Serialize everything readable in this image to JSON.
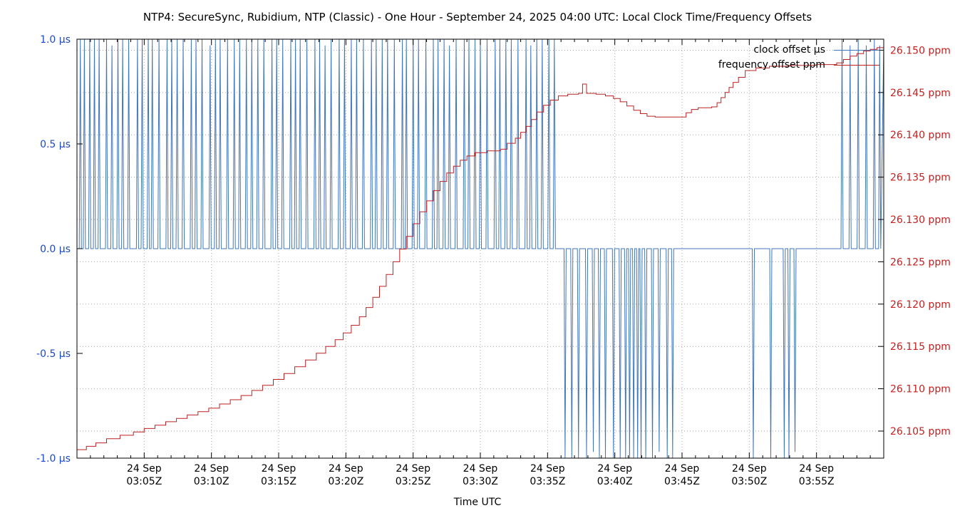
{
  "chart_data": {
    "type": "line",
    "title": "NTP4: SecureSync, Rubidium, NTP (Classic) - One Hour - September 24, 2025 04:00 UTC: Local Clock Time/Frequency Offsets",
    "xlabel": "Time UTC",
    "grid": {
      "color": "#a6a6a6",
      "style": "dotted"
    },
    "x_range": [
      0,
      60
    ],
    "x_ticks": [
      {
        "minute": 5,
        "line1": "24 Sep",
        "line2": "03:05Z"
      },
      {
        "minute": 10,
        "line1": "24 Sep",
        "line2": "03:10Z"
      },
      {
        "minute": 15,
        "line1": "24 Sep",
        "line2": "03:15Z"
      },
      {
        "minute": 20,
        "line1": "24 Sep",
        "line2": "03:20Z"
      },
      {
        "minute": 25,
        "line1": "24 Sep",
        "line2": "03:25Z"
      },
      {
        "minute": 30,
        "line1": "24 Sep",
        "line2": "03:30Z"
      },
      {
        "minute": 35,
        "line1": "24 Sep",
        "line2": "03:35Z"
      },
      {
        "minute": 40,
        "line1": "24 Sep",
        "line2": "03:40Z"
      },
      {
        "minute": 45,
        "line1": "24 Sep",
        "line2": "03:45Z"
      },
      {
        "minute": 50,
        "line1": "24 Sep",
        "line2": "03:50Z"
      },
      {
        "minute": 55,
        "line1": "24 Sep",
        "line2": "03:55Z"
      }
    ],
    "left_axis": {
      "color": "#1d49c7",
      "range": [
        -1,
        1
      ],
      "ticks": [
        {
          "value": 1.0,
          "label": "1.0 µs"
        },
        {
          "value": 0.5,
          "label": "0.5 µs"
        },
        {
          "value": 0.0,
          "label": "0.0 µs"
        },
        {
          "value": -0.5,
          "label": "-0.5 µs"
        },
        {
          "value": -1.0,
          "label": "-1.0 µs"
        }
      ]
    },
    "right_axis": {
      "color": "#c42020",
      "range": [
        26.1018,
        26.1513
      ],
      "ticks": [
        {
          "value": 26.15,
          "label": "26.150 ppm"
        },
        {
          "value": 26.145,
          "label": "26.145 ppm"
        },
        {
          "value": 26.14,
          "label": "26.140 ppm"
        },
        {
          "value": 26.135,
          "label": "26.135 ppm"
        },
        {
          "value": 26.13,
          "label": "26.130 ppm"
        },
        {
          "value": 26.125,
          "label": "26.125 ppm"
        },
        {
          "value": 26.12,
          "label": "26.120 ppm"
        },
        {
          "value": 26.115,
          "label": "26.115 ppm"
        },
        {
          "value": 26.11,
          "label": "26.110 ppm"
        },
        {
          "value": 26.105,
          "label": "26.105 ppm"
        }
      ]
    },
    "series": [
      {
        "name": "clock offset µs",
        "color": "#3f76b8",
        "axis": "left",
        "type": "spikes",
        "baseline": 0,
        "spike_halfwidth_minutes": 0.08,
        "end_value": 0.97,
        "spikes": [
          [
            0.25,
            1.05
          ],
          [
            0.55,
            1.05
          ],
          [
            0.95,
            1.05
          ],
          [
            1.3,
            1.05
          ],
          [
            1.65,
            1.05
          ],
          [
            2.2,
            1.05
          ],
          [
            2.6,
            0.97
          ],
          [
            3.05,
            1.05
          ],
          [
            3.4,
            1.05
          ],
          [
            3.85,
            1.05
          ],
          [
            4.5,
            1.05
          ],
          [
            4.85,
            1.05
          ],
          [
            5.3,
            1.05
          ],
          [
            5.6,
            1.05
          ],
          [
            6.1,
            1.05
          ],
          [
            6.7,
            1.05
          ],
          [
            7.05,
            1.05
          ],
          [
            7.45,
            1.05
          ],
          [
            7.9,
            1.05
          ],
          [
            8.5,
            1.05
          ],
          [
            8.85,
            1.05
          ],
          [
            9.3,
            1.05
          ],
          [
            9.9,
            0.97
          ],
          [
            10.3,
            1.05
          ],
          [
            10.65,
            1.05
          ],
          [
            11.2,
            1.05
          ],
          [
            11.7,
            1.05
          ],
          [
            12.1,
            1.05
          ],
          [
            12.6,
            1.05
          ],
          [
            13.0,
            1.05
          ],
          [
            13.45,
            1.05
          ],
          [
            13.9,
            1.05
          ],
          [
            14.5,
            1.05
          ],
          [
            14.85,
            1.05
          ],
          [
            15.3,
            1.05
          ],
          [
            15.9,
            1.05
          ],
          [
            16.25,
            1.05
          ],
          [
            16.6,
            1.05
          ],
          [
            17.1,
            1.05
          ],
          [
            17.7,
            1.05
          ],
          [
            18.05,
            1.05
          ],
          [
            18.45,
            0.97
          ],
          [
            18.9,
            1.05
          ],
          [
            19.5,
            1.05
          ],
          [
            19.9,
            1.05
          ],
          [
            20.4,
            1.05
          ],
          [
            20.8,
            1.05
          ],
          [
            21.3,
            1.05
          ],
          [
            21.9,
            1.05
          ],
          [
            22.25,
            1.05
          ],
          [
            22.7,
            1.05
          ],
          [
            23.1,
            1.05
          ],
          [
            23.6,
            1.05
          ],
          [
            24.2,
            1.05
          ],
          [
            24.5,
            1.05
          ],
          [
            25.0,
            1.05
          ],
          [
            25.4,
            1.05
          ],
          [
            25.95,
            1.05
          ],
          [
            26.5,
            1.05
          ],
          [
            26.85,
            1.05
          ],
          [
            27.3,
            1.05
          ],
          [
            27.7,
            0.97
          ],
          [
            28.2,
            1.05
          ],
          [
            28.8,
            1.05
          ],
          [
            29.15,
            1.05
          ],
          [
            29.6,
            1.05
          ],
          [
            30.0,
            1.05
          ],
          [
            30.5,
            1.05
          ],
          [
            31.1,
            1.05
          ],
          [
            31.45,
            1.05
          ],
          [
            31.9,
            1.05
          ],
          [
            32.3,
            1.05
          ],
          [
            32.8,
            1.05
          ],
          [
            33.4,
            1.05
          ],
          [
            33.75,
            0.97
          ],
          [
            34.2,
            1.05
          ],
          [
            34.6,
            1.05
          ],
          [
            35.1,
            1.05
          ],
          [
            35.5,
            1.05
          ],
          [
            36.3,
            -1.05
          ],
          [
            36.8,
            -1.05
          ],
          [
            37.3,
            -1.05
          ],
          [
            37.9,
            -1.05
          ],
          [
            38.4,
            -0.97
          ],
          [
            38.85,
            -1.05
          ],
          [
            39.3,
            -1.05
          ],
          [
            39.9,
            -1.05
          ],
          [
            40.4,
            -1.05
          ],
          [
            40.8,
            -1.05
          ],
          [
            41.1,
            -1.05
          ],
          [
            41.4,
            -1.05
          ],
          [
            41.7,
            -1.05
          ],
          [
            41.95,
            -1.05
          ],
          [
            42.3,
            -1.05
          ],
          [
            42.8,
            -1.05
          ],
          [
            43.3,
            -0.97
          ],
          [
            43.9,
            -1.05
          ],
          [
            44.3,
            -1.05
          ],
          [
            50.3,
            -1.05
          ],
          [
            51.6,
            -1.05
          ],
          [
            52.6,
            -1.05
          ],
          [
            52.95,
            -1.05
          ],
          [
            53.4,
            -0.97
          ],
          [
            56.9,
            1.05
          ],
          [
            57.5,
            0.97
          ],
          [
            58.1,
            1.05
          ],
          [
            58.7,
            0.97
          ],
          [
            59.3,
            1.05
          ],
          [
            59.7,
            0.97
          ]
        ]
      },
      {
        "name": "frequency offset ppm",
        "color": "#bb2222",
        "axis": "right",
        "type": "step",
        "points": [
          [
            0,
            26.1028
          ],
          [
            0.7,
            26.1032
          ],
          [
            1.4,
            26.1036
          ],
          [
            2.2,
            26.1041
          ],
          [
            3.2,
            26.1045
          ],
          [
            4.2,
            26.1049
          ],
          [
            5.0,
            26.1053
          ],
          [
            5.8,
            26.1057
          ],
          [
            6.6,
            26.1061
          ],
          [
            7.4,
            26.1065
          ],
          [
            8.2,
            26.1069
          ],
          [
            9.0,
            26.1073
          ],
          [
            9.8,
            26.1077
          ],
          [
            10.6,
            26.1082
          ],
          [
            11.4,
            26.1087
          ],
          [
            12.2,
            26.1092
          ],
          [
            13.0,
            26.1098
          ],
          [
            13.8,
            26.1104
          ],
          [
            14.6,
            26.1111
          ],
          [
            15.4,
            26.1118
          ],
          [
            16.2,
            26.1126
          ],
          [
            17.0,
            26.1134
          ],
          [
            17.8,
            26.1142
          ],
          [
            18.5,
            26.115
          ],
          [
            19.2,
            26.1158
          ],
          [
            19.8,
            26.1166
          ],
          [
            20.4,
            26.1175
          ],
          [
            21.0,
            26.1185
          ],
          [
            21.5,
            26.1196
          ],
          [
            22.0,
            26.1208
          ],
          [
            22.5,
            26.1221
          ],
          [
            23.0,
            26.1235
          ],
          [
            23.5,
            26.125
          ],
          [
            24.0,
            26.1265
          ],
          [
            24.5,
            26.128
          ],
          [
            25.0,
            26.1295
          ],
          [
            25.5,
            26.1309
          ],
          [
            26.0,
            26.1322
          ],
          [
            26.5,
            26.1334
          ],
          [
            27.0,
            26.1345
          ],
          [
            27.5,
            26.1355
          ],
          [
            28.0,
            26.1363
          ],
          [
            28.5,
            26.137
          ],
          [
            29.0,
            26.1375
          ],
          [
            29.6,
            26.1379
          ],
          [
            30.5,
            26.1381
          ],
          [
            31.5,
            26.1383
          ],
          [
            32.0,
            26.139
          ],
          [
            32.6,
            26.1396
          ],
          [
            33.0,
            26.1403
          ],
          [
            33.4,
            26.141
          ],
          [
            33.8,
            26.1418
          ],
          [
            34.2,
            26.1427
          ],
          [
            34.7,
            26.1435
          ],
          [
            35.2,
            26.1441
          ],
          [
            35.8,
            26.1446
          ],
          [
            36.5,
            26.1448
          ],
          [
            37.3,
            26.1449
          ],
          [
            37.6,
            26.146
          ],
          [
            37.9,
            26.1449
          ],
          [
            38.6,
            26.1448
          ],
          [
            39.3,
            26.1446
          ],
          [
            39.9,
            26.1443
          ],
          [
            40.4,
            26.1439
          ],
          [
            40.9,
            26.1434
          ],
          [
            41.4,
            26.1429
          ],
          [
            41.9,
            26.1425
          ],
          [
            42.4,
            26.1422
          ],
          [
            43.0,
            26.1421
          ],
          [
            44.9,
            26.1421
          ],
          [
            45.3,
            26.1426
          ],
          [
            45.7,
            26.143
          ],
          [
            46.2,
            26.1432
          ],
          [
            47.2,
            26.1433
          ],
          [
            47.6,
            26.1438
          ],
          [
            47.9,
            26.1444
          ],
          [
            48.2,
            26.145
          ],
          [
            48.5,
            26.1456
          ],
          [
            48.8,
            26.1462
          ],
          [
            49.2,
            26.1468
          ],
          [
            49.7,
            26.1476
          ],
          [
            50.5,
            26.1479
          ],
          [
            51.5,
            26.1481
          ],
          [
            53.0,
            26.1482
          ],
          [
            55.0,
            26.1483
          ],
          [
            56.5,
            26.1485
          ],
          [
            57.0,
            26.1489
          ],
          [
            57.5,
            26.1493
          ],
          [
            58.0,
            26.1496
          ],
          [
            58.5,
            26.1499
          ],
          [
            59.0,
            26.1501
          ],
          [
            59.5,
            26.1503
          ],
          [
            60,
            26.1504
          ]
        ]
      }
    ]
  }
}
